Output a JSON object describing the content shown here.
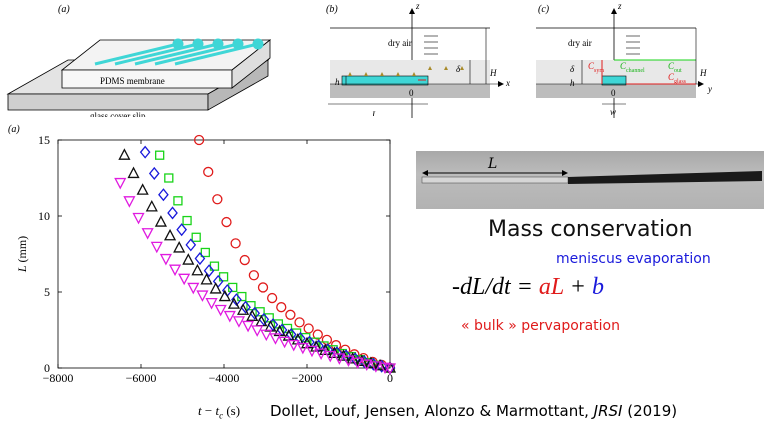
{
  "panels": {
    "a_top": {
      "tag": "(a)",
      "membrane_label": "PDMS membrane",
      "glass_label": "glass cover slip"
    },
    "b": {
      "tag": "(b)",
      "z": "z",
      "x": "x",
      "dry_air": "dry air",
      "delta": "δ",
      "H": "H",
      "h": "h",
      "origin": "0",
      "L": "L"
    },
    "c": {
      "tag": "(c)",
      "z": "z",
      "y": "y",
      "dry_air": "dry air",
      "delta": "δ",
      "h": "h",
      "H": "H",
      "origin": "0",
      "w": "w",
      "c_sym": "C",
      "c_sym_sub": "sym",
      "c_channel": "C",
      "c_channel_sub": "channel",
      "c_out": "C",
      "c_out_sub": "out",
      "c_glass": "C",
      "c_glass_sub": "glass"
    },
    "plot": {
      "tag": "(a)"
    }
  },
  "chart_data": {
    "type": "scatter",
    "xlabel": "t − t_c (s)",
    "ylabel": "L (mm)",
    "xlim": [
      -8000,
      0
    ],
    "ylim": [
      0,
      15
    ],
    "xticks": [
      -8000,
      -6000,
      -4000,
      -2000,
      0
    ],
    "yticks": [
      0,
      5,
      10,
      15
    ],
    "series": [
      {
        "marker": "circle",
        "color": "#e01b1b",
        "x": [
          -4600,
          -4380,
          -4160,
          -3940,
          -3720,
          -3500,
          -3280,
          -3060,
          -2840,
          -2620,
          -2400,
          -2180,
          -1960,
          -1740,
          -1520,
          -1300,
          -1080,
          -860,
          -640,
          -420,
          -200,
          0
        ],
        "y": [
          15.0,
          12.9,
          11.1,
          9.6,
          8.2,
          7.1,
          6.1,
          5.3,
          4.6,
          4.0,
          3.5,
          3.0,
          2.6,
          2.2,
          1.85,
          1.5,
          1.2,
          0.9,
          0.65,
          0.4,
          0.2,
          0.0
        ]
      },
      {
        "marker": "square",
        "color": "#19d419",
        "x": [
          -5550,
          -5330,
          -5110,
          -4890,
          -4670,
          -4450,
          -4230,
          -4010,
          -3790,
          -3570,
          -3350,
          -3130,
          -2910,
          -2690,
          -2470,
          -2250,
          -2030,
          -1810,
          -1590,
          -1370,
          -1150,
          -930,
          -710,
          -490,
          -270,
          0
        ],
        "y": [
          14.0,
          12.5,
          11.0,
          9.7,
          8.6,
          7.6,
          6.7,
          6.0,
          5.3,
          4.7,
          4.1,
          3.7,
          3.3,
          2.9,
          2.6,
          2.3,
          2.0,
          1.7,
          1.45,
          1.2,
          0.95,
          0.75,
          0.55,
          0.35,
          0.18,
          0.0
        ]
      },
      {
        "marker": "diamond",
        "color": "#1a1adb",
        "x": [
          -5900,
          -5680,
          -5460,
          -5240,
          -5020,
          -4800,
          -4580,
          -4360,
          -4140,
          -3920,
          -3700,
          -3480,
          -3260,
          -3040,
          -2820,
          -2600,
          -2380,
          -2160,
          -1940,
          -1720,
          -1500,
          -1280,
          -1060,
          -840,
          -620,
          -400,
          -200,
          0
        ],
        "y": [
          14.2,
          12.8,
          11.4,
          10.2,
          9.1,
          8.1,
          7.2,
          6.4,
          5.7,
          5.1,
          4.5,
          4.0,
          3.6,
          3.2,
          2.85,
          2.5,
          2.2,
          1.95,
          1.7,
          1.45,
          1.2,
          1.0,
          0.8,
          0.6,
          0.42,
          0.25,
          0.12,
          0.0
        ]
      },
      {
        "marker": "triangle-up",
        "color": "#111111",
        "x": [
          -6400,
          -6180,
          -5960,
          -5740,
          -5520,
          -5300,
          -5080,
          -4860,
          -4640,
          -4420,
          -4200,
          -3980,
          -3760,
          -3540,
          -3320,
          -3100,
          -2880,
          -2660,
          -2440,
          -2220,
          -2000,
          -1780,
          -1560,
          -1340,
          -1120,
          -900,
          -680,
          -460,
          -240,
          0
        ],
        "y": [
          14.0,
          12.8,
          11.7,
          10.6,
          9.6,
          8.7,
          7.9,
          7.1,
          6.4,
          5.8,
          5.2,
          4.7,
          4.2,
          3.8,
          3.4,
          3.05,
          2.7,
          2.4,
          2.1,
          1.85,
          1.6,
          1.38,
          1.16,
          0.96,
          0.78,
          0.6,
          0.44,
          0.3,
          0.15,
          0.0
        ]
      },
      {
        "marker": "triangle-down",
        "color": "#e01be0",
        "x": [
          -6500,
          -6280,
          -6060,
          -5840,
          -5620,
          -5400,
          -5180,
          -4960,
          -4740,
          -4520,
          -4300,
          -4080,
          -3860,
          -3640,
          -3420,
          -3200,
          -2980,
          -2760,
          -2540,
          -2320,
          -2100,
          -1880,
          -1660,
          -1440,
          -1220,
          -1000,
          -780,
          -560,
          -340,
          -120,
          0
        ],
        "y": [
          12.2,
          11.0,
          9.9,
          8.9,
          8.0,
          7.2,
          6.5,
          5.9,
          5.3,
          4.8,
          4.3,
          3.85,
          3.45,
          3.1,
          2.8,
          2.5,
          2.22,
          1.98,
          1.75,
          1.54,
          1.35,
          1.16,
          0.98,
          0.82,
          0.66,
          0.52,
          0.38,
          0.26,
          0.14,
          0.05,
          0.0
        ]
      }
    ]
  },
  "photo": {
    "L_label": "L"
  },
  "text": {
    "mass_conservation": "Mass conservation",
    "meniscus": "meniscus evaporation",
    "eq_lhs": "-dL/dt = ",
    "eq_a": "aL",
    "eq_plus": " + ",
    "eq_b": "b",
    "bulk": "« bulk » pervaporation",
    "xlabel_html_t": "t",
    "xlabel_html_minus": " − ",
    "xlabel_html_tc": "t",
    "xlabel_html_c": "c",
    "xlabel_html_unit": " (s)",
    "citation_authors": "Dollet, Louf, Jensen, Alonzo & Marmottant, ",
    "citation_journal": "JRSI",
    "citation_year": " (2019)"
  },
  "colors": {
    "red": "#e01b1b",
    "blue": "#1a1adb",
    "green": "#19d419",
    "magenta": "#e01be0",
    "cyan": "#3fd6d6"
  }
}
